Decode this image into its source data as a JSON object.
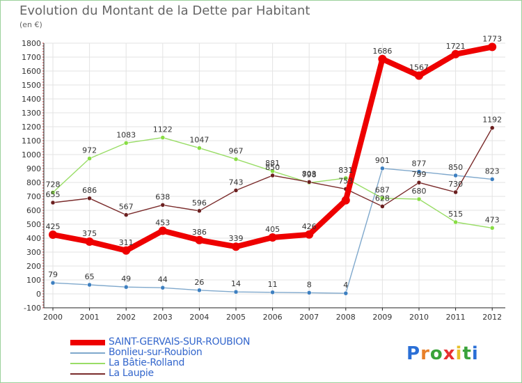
{
  "title": "Evolution du Montant de la Dette par Habitant",
  "subtitle": "(en €)",
  "logo_text": "Proxiti",
  "colors": {
    "grid": "#e3e3e3",
    "axis": "#222222",
    "label": "#333333",
    "legend_text": "#3366cc"
  },
  "chart_data": {
    "type": "line",
    "title": "Evolution du Montant de la Dette par Habitant",
    "ylabel": "(en €)",
    "xlabel": "",
    "ylim": [
      -100,
      1800
    ],
    "yticks": [
      -100,
      0,
      100,
      200,
      300,
      400,
      500,
      600,
      700,
      800,
      900,
      1000,
      1100,
      1200,
      1300,
      1400,
      1500,
      1600,
      1700,
      1800
    ],
    "x": [
      "2000",
      "2001",
      "2002",
      "2003",
      "2004",
      "2005",
      "2006",
      "2007",
      "2008",
      "2009",
      "2010",
      "2011",
      "2012"
    ],
    "grid": true,
    "legend_position": "bottom-left",
    "series": [
      {
        "name": "SAINT-GERVAIS-SUR-ROUBION",
        "color": "#ee0000",
        "dot": "#ee0000",
        "style": "thick",
        "values": [
          425,
          375,
          311,
          453,
          386,
          339,
          405,
          426,
          672,
          1686,
          1567,
          1721,
          1773
        ],
        "labels": [
          "425",
          "375",
          "311",
          "453",
          "386",
          "339",
          "405",
          "426",
          "",
          "1686",
          "1567",
          "1721",
          "1773"
        ]
      },
      {
        "name": "Bonlieu-sur-Roubion",
        "color": "#7fa8cc",
        "dot": "#3d7fc0",
        "style": "thin",
        "values": [
          79,
          65,
          49,
          44,
          26,
          14,
          11,
          8,
          4,
          901,
          877,
          850,
          823
        ],
        "labels": [
          "79",
          "65",
          "49",
          "44",
          "26",
          "14",
          "11",
          "8",
          "4",
          "901",
          "877",
          "850",
          "823"
        ]
      },
      {
        "name": "La Bâtie-Rolland",
        "color": "#99dd66",
        "dot": "#88dd44",
        "style": "thin",
        "values": [
          728,
          972,
          1083,
          1122,
          1047,
          967,
          881,
          798,
          831,
          687,
          680,
          515,
          473
        ],
        "labels": [
          "728",
          "972",
          "1083",
          "1122",
          "1047",
          "967",
          "881",
          "798",
          "831",
          "687",
          "680",
          "515",
          "473"
        ]
      },
      {
        "name": "La Laupie",
        "color": "#7a2b2b",
        "dot": "#6b1f1f",
        "style": "thin",
        "values": [
          655,
          686,
          567,
          638,
          596,
          743,
          850,
          803,
          753,
          628,
          799,
          730,
          1192
        ],
        "labels": [
          "655",
          "686",
          "567",
          "638",
          "596",
          "743",
          "850",
          "803",
          "753",
          "628",
          "799",
          "730",
          "1192"
        ]
      }
    ]
  }
}
